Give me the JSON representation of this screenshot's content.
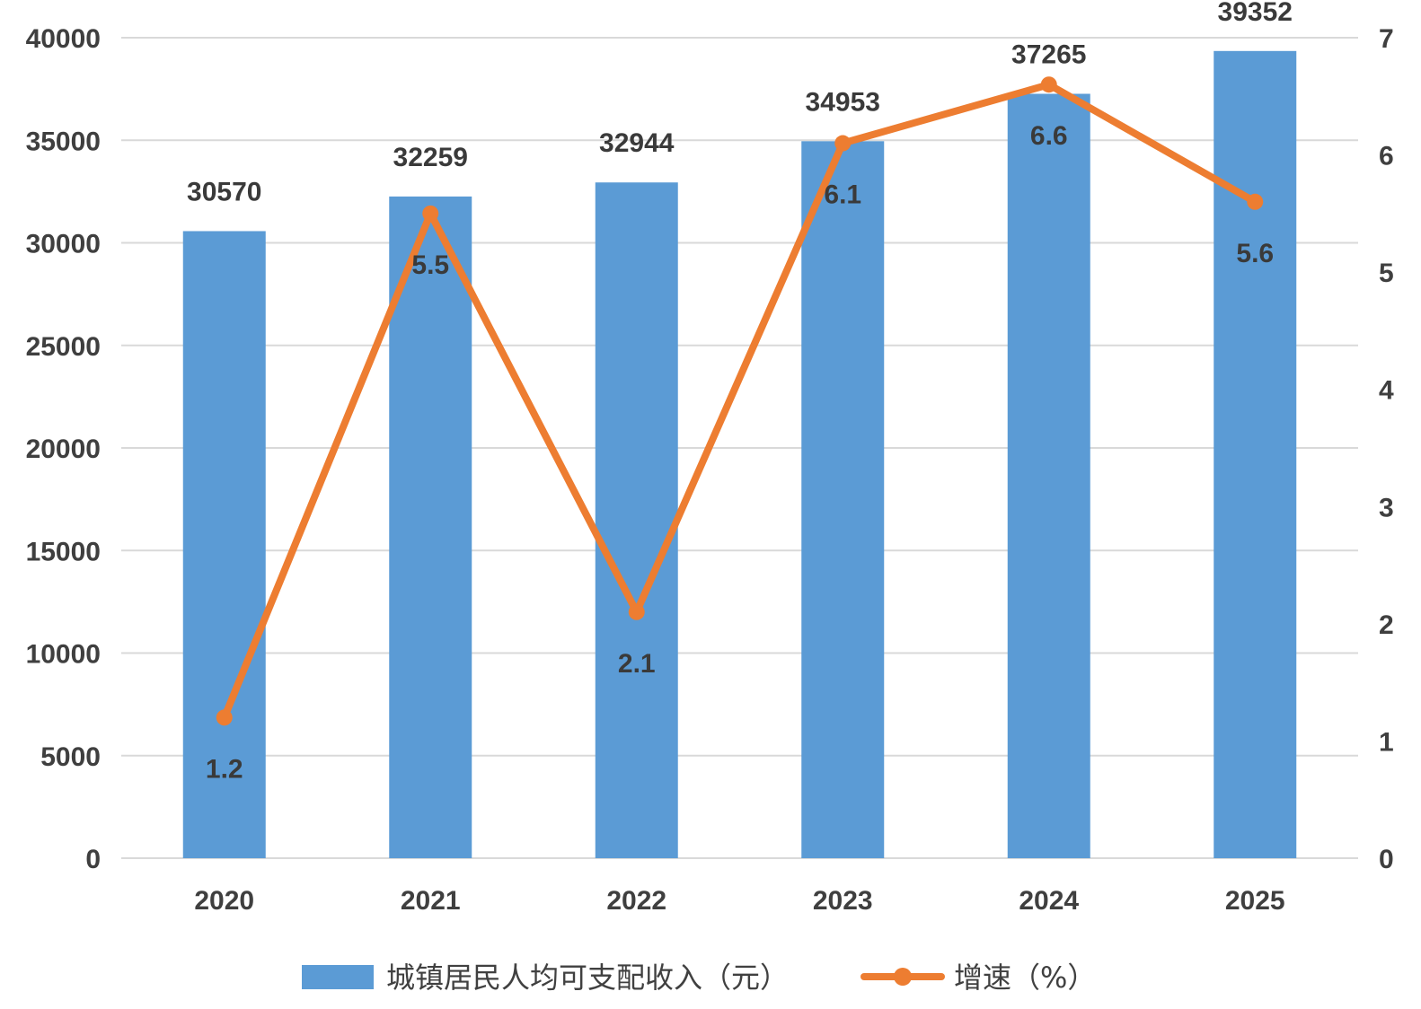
{
  "chart_data": {
    "type": "bar",
    "categories": [
      "2020",
      "2021",
      "2022",
      "2023",
      "2024",
      "2025"
    ],
    "series": [
      {
        "name": "城镇居民人均可支配收入（元）",
        "type": "bar",
        "axis": "left",
        "color": "#5b9bd5",
        "values": [
          30570,
          32259,
          32944,
          34953,
          37265,
          39352
        ]
      },
      {
        "name": "增速（%）",
        "type": "line",
        "axis": "right",
        "color": "#ed7d31",
        "values": [
          1.2,
          5.5,
          2.1,
          6.1,
          6.6,
          5.6
        ]
      }
    ],
    "y_left": {
      "min": 0,
      "max": 40000,
      "step": 5000,
      "ticks": [
        "0",
        "5000",
        "10000",
        "15000",
        "20000",
        "25000",
        "30000",
        "35000",
        "40000"
      ]
    },
    "y_right": {
      "min": 0,
      "max": 7,
      "step": 1,
      "ticks": [
        "0",
        "1",
        "2",
        "3",
        "4",
        "5",
        "6",
        "7"
      ]
    },
    "grid": true,
    "legend_position": "bottom"
  }
}
